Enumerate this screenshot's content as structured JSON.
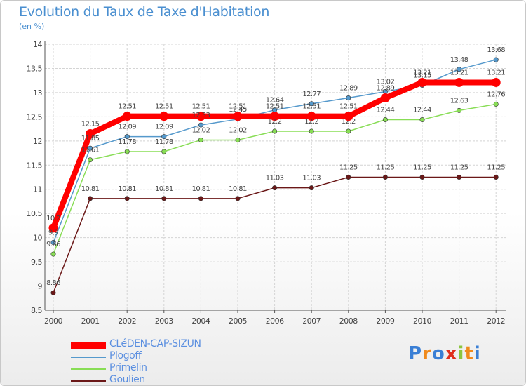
{
  "title": "Evolution du Taux de Taxe d'Habitation",
  "unit": "(en %)",
  "logo_text": "Proxiti",
  "chart_data": {
    "type": "line",
    "title": "Evolution du Taux de Taxe d'Habitation",
    "ylabel": "(en %)",
    "xlabel": "",
    "ylim": [
      8.5,
      14
    ],
    "yticks": [
      8.5,
      9,
      9.5,
      10,
      10.5,
      11,
      11.5,
      12,
      12.5,
      13,
      13.5,
      14
    ],
    "ytick_labels": [
      "8.5",
      "9",
      "9.5",
      "10",
      "10.5",
      "11",
      "11.5",
      "12",
      "12.5",
      "13",
      "13.5",
      "14"
    ],
    "x": [
      "2000",
      "2001",
      "2002",
      "2003",
      "2004",
      "2005",
      "2006",
      "2007",
      "2008",
      "2009",
      "2010",
      "2011",
      "2012"
    ],
    "grid": true,
    "legend_position": "bottom-left",
    "series": [
      {
        "name": "Goulien",
        "color": "#6b1818",
        "values": [
          8.86,
          10.81,
          10.81,
          10.81,
          10.81,
          10.81,
          11.03,
          11.03,
          11.25,
          11.25,
          11.25,
          11.25,
          11.25
        ],
        "labels": [
          "8.86",
          "10.81",
          "10.81",
          "10.81",
          "10.81",
          "10.81",
          "11.03",
          "11.03",
          "11.25",
          "11.25",
          "11.25",
          "11.25",
          "11.25"
        ]
      },
      {
        "name": "Primelin",
        "color": "#88dd55",
        "values": [
          9.66,
          11.61,
          11.78,
          11.78,
          12.02,
          12.02,
          12.2,
          12.2,
          12.2,
          12.44,
          12.44,
          12.63,
          12.76
        ],
        "labels": [
          "9.66",
          "11.61",
          "11.78",
          "11.78",
          "12.02",
          "12.02",
          "12.2",
          "12.2",
          "12.2",
          "12.44",
          "12.44",
          "12.63",
          "12.76"
        ]
      },
      {
        "name": "Plogoff",
        "color": "#5599cc",
        "values": [
          9.9,
          11.85,
          12.09,
          12.09,
          12.33,
          12.45,
          12.64,
          12.77,
          12.89,
          13.02,
          13.15,
          13.48,
          13.68
        ],
        "labels": [
          "9.9",
          "11.85",
          "12.09",
          "12.09",
          "12.33",
          "12.45",
          "12.64",
          "12.77",
          "12.89",
          "13.02",
          "13.15",
          "13.48",
          "13.68"
        ]
      },
      {
        "name": "CLéDEN-CAP-SIZUN",
        "color": "#ff0000",
        "values": [
          10.2,
          12.15,
          12.51,
          12.51,
          12.51,
          12.51,
          12.51,
          12.51,
          12.51,
          12.89,
          13.21,
          13.21,
          13.21
        ],
        "labels": [
          "10.2",
          "12.15",
          "12.51",
          "12.51",
          "12.51",
          "12.51",
          "12.51",
          "12.51",
          "12.51",
          "12.89",
          "13.21",
          "13.21",
          "13.21"
        ]
      }
    ]
  },
  "legend": [
    {
      "name": "CLéDEN-CAP-SIZUN",
      "color": "#ff0000"
    },
    {
      "name": "Plogoff",
      "color": "#5599cc"
    },
    {
      "name": "Primelin",
      "color": "#88dd55"
    },
    {
      "name": "Goulien",
      "color": "#6b1818"
    }
  ]
}
